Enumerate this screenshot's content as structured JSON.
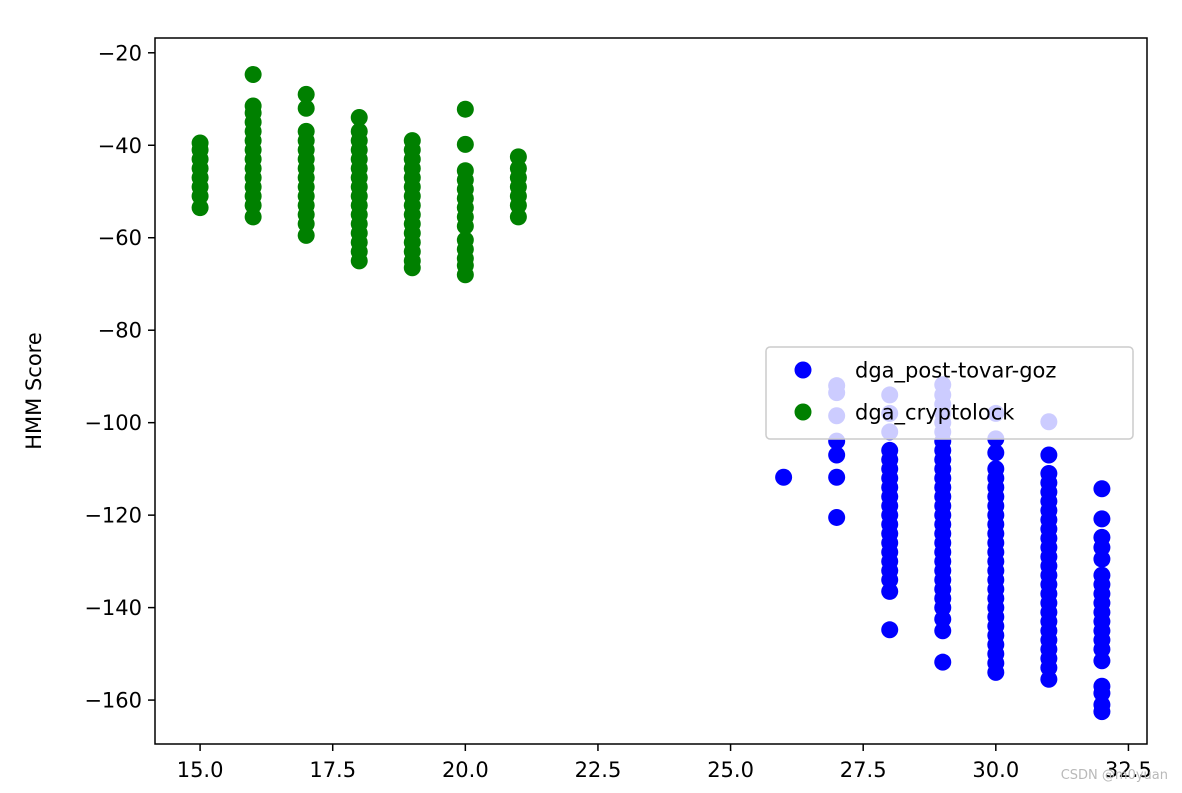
{
  "chart_data": {
    "type": "scatter",
    "title": "",
    "xlabel": "",
    "ylabel": "HMM Score",
    "xlim": [
      14.15,
      32.85
    ],
    "ylim": [
      -169.5,
      -16.8
    ],
    "x_ticks": [
      15.0,
      17.5,
      20.0,
      22.5,
      25.0,
      27.5,
      30.0,
      32.5
    ],
    "x_tick_labels": [
      "15.0",
      "17.5",
      "20.0",
      "22.5",
      "25.0",
      "27.5",
      "30.0",
      "32.5"
    ],
    "y_ticks": [
      -20,
      -40,
      -60,
      -80,
      -100,
      -120,
      -140,
      -160
    ],
    "y_tick_labels": [
      "−20",
      "−40",
      "−60",
      "−80",
      "−100",
      "−120",
      "−140",
      "−160"
    ],
    "grid": false,
    "legend": {
      "placement": "center-right"
    },
    "series": [
      {
        "name": "dga_post-tovar-goz",
        "color": "#0000ff",
        "groups": [
          {
            "x": 26,
            "y": [
              -111.8
            ]
          },
          {
            "x": 27,
            "y": [
              -92.0,
              -93.5,
              -98.5,
              -104.0,
              -107.0,
              -111.8,
              -120.5
            ]
          },
          {
            "x": 28,
            "y": [
              -94.0,
              -98.0,
              -102.0,
              -106.0,
              -108.0,
              -110.0,
              -112.0,
              -114.0,
              -116.0,
              -118.0,
              -120.0,
              -122.0,
              -124.0,
              -126.0,
              -128.0,
              -130.0,
              -132.0,
              -134.0,
              -136.5,
              -144.8
            ]
          },
          {
            "x": 29,
            "y": [
              -91.8,
              -94.0,
              -96.0,
              -98.0,
              -100.0,
              -102.0,
              -104.0,
              -106.0,
              -108.0,
              -110.0,
              -112.0,
              -114.0,
              -116.0,
              -118.0,
              -120.0,
              -122.0,
              -124.0,
              -126.0,
              -128.0,
              -130.0,
              -132.0,
              -134.0,
              -136.0,
              -138.0,
              -140.0,
              -142.5,
              -145.0,
              -151.8
            ]
          },
          {
            "x": 30,
            "y": [
              -98.0,
              -103.5,
              -106.5,
              -110.0,
              -112.0,
              -114.0,
              -116.0,
              -118.0,
              -120.0,
              -122.0,
              -124.0,
              -126.0,
              -128.0,
              -130.0,
              -132.0,
              -134.0,
              -136.0,
              -138.0,
              -140.0,
              -142.0,
              -144.0,
              -146.0,
              -148.0,
              -150.0,
              -152.0,
              -154.0
            ]
          },
          {
            "x": 31,
            "y": [
              -99.8,
              -107.0,
              -111.0,
              -113.0,
              -115.0,
              -117.0,
              -119.0,
              -121.0,
              -123.0,
              -125.0,
              -127.0,
              -129.0,
              -131.0,
              -133.0,
              -135.0,
              -137.0,
              -139.0,
              -141.0,
              -143.0,
              -145.0,
              -147.0,
              -149.0,
              -151.0,
              -153.0,
              -155.5
            ]
          },
          {
            "x": 32,
            "y": [
              -114.3,
              -120.8,
              -124.8,
              -127.0,
              -129.5,
              -133.0,
              -135.0,
              -137.0,
              -139.0,
              -141.0,
              -143.0,
              -145.0,
              -147.0,
              -149.0,
              -151.5,
              -157.0,
              -158.5,
              -161.0,
              -162.5
            ]
          }
        ]
      },
      {
        "name": "dga_cryptolock",
        "color": "#008000",
        "groups": [
          {
            "x": 15,
            "y": [
              -39.5,
              -41.0,
              -43.0,
              -45.0,
              -47.0,
              -49.0,
              -51.0,
              -53.5
            ]
          },
          {
            "x": 16,
            "y": [
              -24.7,
              -31.5,
              -33.0,
              -35.0,
              -37.0,
              -39.0,
              -41.0,
              -43.0,
              -45.0,
              -47.0,
              -49.0,
              -51.0,
              -53.0,
              -55.5
            ]
          },
          {
            "x": 17,
            "y": [
              -29.0,
              -32.0,
              -37.0,
              -39.0,
              -41.0,
              -43.0,
              -45.0,
              -47.0,
              -49.0,
              -51.0,
              -53.0,
              -55.0,
              -57.0,
              -59.5
            ]
          },
          {
            "x": 18,
            "y": [
              -34.0,
              -37.0,
              -39.0,
              -41.0,
              -43.0,
              -45.0,
              -47.0,
              -49.0,
              -51.0,
              -53.0,
              -55.0,
              -57.0,
              -59.0,
              -61.0,
              -63.0,
              -65.0
            ]
          },
          {
            "x": 19,
            "y": [
              -39.0,
              -41.0,
              -43.0,
              -45.0,
              -47.0,
              -49.0,
              -51.0,
              -53.0,
              -55.0,
              -57.0,
              -59.0,
              -61.0,
              -63.0,
              -65.0,
              -66.5
            ]
          },
          {
            "x": 20,
            "y": [
              -32.2,
              -39.8,
              -45.5,
              -47.5,
              -49.5,
              -51.5,
              -53.5,
              -55.5,
              -57.5,
              -60.5,
              -62.5,
              -64.5,
              -66.0,
              -68.0
            ]
          },
          {
            "x": 21,
            "y": [
              -42.5,
              -45.0,
              -47.0,
              -49.0,
              -51.0,
              -53.0,
              -55.5
            ]
          }
        ]
      }
    ]
  },
  "watermark": "CSDN @m0yuan"
}
